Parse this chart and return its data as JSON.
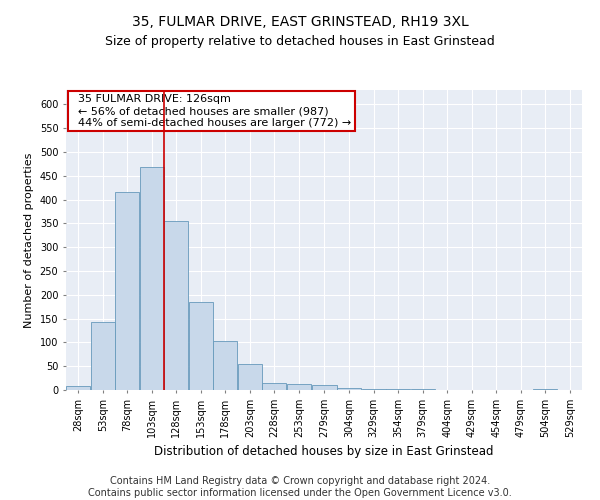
{
  "title": "35, FULMAR DRIVE, EAST GRINSTEAD, RH19 3XL",
  "subtitle": "Size of property relative to detached houses in East Grinstead",
  "xlabel": "Distribution of detached houses by size in East Grinstead",
  "ylabel": "Number of detached properties",
  "bar_color": "#c8d8ea",
  "bar_edge_color": "#6699bb",
  "annotation_box_color": "#cc0000",
  "vline_color": "#cc0000",
  "annotation_lines": [
    "  35 FULMAR DRIVE: 126sqm",
    "  ← 56% of detached houses are smaller (987)",
    "  44% of semi-detached houses are larger (772) →"
  ],
  "bins": [
    28,
    53,
    78,
    103,
    128,
    153,
    178,
    203,
    228,
    253,
    279,
    304,
    329,
    354,
    379,
    404,
    429,
    454,
    479,
    504,
    529
  ],
  "bin_labels": [
    "28sqm",
    "53sqm",
    "78sqm",
    "103sqm",
    "128sqm",
    "153sqm",
    "178sqm",
    "203sqm",
    "228sqm",
    "253sqm",
    "279sqm",
    "304sqm",
    "329sqm",
    "354sqm",
    "379sqm",
    "404sqm",
    "429sqm",
    "454sqm",
    "479sqm",
    "504sqm",
    "529sqm"
  ],
  "bar_heights": [
    9,
    143,
    416,
    468,
    354,
    185,
    102,
    54,
    15,
    13,
    10,
    5,
    3,
    3,
    2,
    1,
    0,
    0,
    0,
    3
  ],
  "ylim": [
    0,
    630
  ],
  "yticks": [
    0,
    50,
    100,
    150,
    200,
    250,
    300,
    350,
    400,
    450,
    500,
    550,
    600
  ],
  "plot_bg_color": "#e8edf5",
  "title_fontsize": 10,
  "subtitle_fontsize": 9,
  "axis_fontsize": 8,
  "tick_fontsize": 7,
  "annotation_fontsize": 8,
  "footer_fontsize": 7,
  "footer": "Contains HM Land Registry data © Crown copyright and database right 2024.\nContains public sector information licensed under the Open Government Licence v3.0."
}
